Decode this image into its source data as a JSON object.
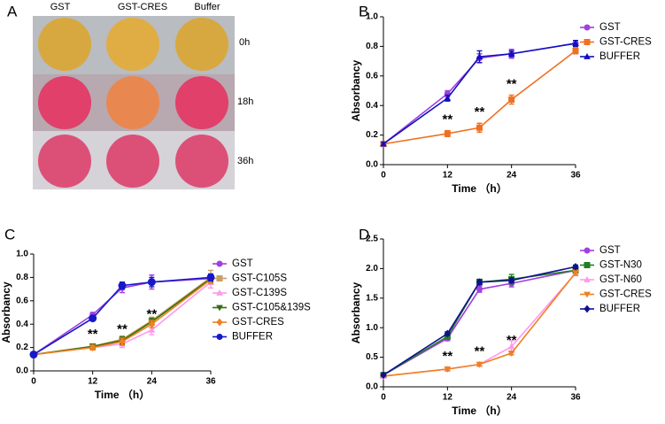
{
  "photo_panel": {
    "panel": "A",
    "columns": [
      "GST",
      "GST-CRES",
      "Buffer"
    ],
    "rows": [
      "0h",
      "18h",
      "36h"
    ]
  },
  "chart_data": [
    {
      "type": "line",
      "panel": "B",
      "xlabel": "Time （h）",
      "ylabel": "Absorbancy",
      "x": [
        0,
        12,
        18,
        24,
        36
      ],
      "xlim": [
        0,
        36
      ],
      "xticks": [
        0,
        12,
        24,
        36
      ],
      "ylim": [
        0,
        1
      ],
      "yticks": [
        {
          "value": 0,
          "label": "0.0"
        },
        0.2,
        0.4,
        0.6,
        0.8,
        {
          "value": 1,
          "label": "1.0"
        }
      ],
      "annotations": [
        {
          "text": "**",
          "x": 12
        },
        {
          "text": "**",
          "x": 18
        },
        {
          "text": "**",
          "x": 24
        }
      ],
      "series": [
        {
          "name": "GST",
          "color": "#a040e0",
          "marker": "circle",
          "values": [
            0.14,
            0.48,
            0.72,
            0.75,
            0.82
          ],
          "errors": [
            0.01,
            0.02,
            0.03,
            0.03,
            0.02
          ]
        },
        {
          "name": "GST-CRES",
          "color": "#f07020",
          "marker": "square",
          "values": [
            0.14,
            0.21,
            0.25,
            0.44,
            0.77
          ],
          "errors": [
            0.01,
            0.02,
            0.03,
            0.03,
            0.02
          ]
        },
        {
          "name": "BUFFER",
          "color": "#1010c0",
          "marker": "triangle",
          "values": [
            0.14,
            0.45,
            0.73,
            0.75,
            0.82
          ],
          "errors": [
            0.01,
            0.02,
            0.04,
            0.02,
            0.02
          ]
        }
      ]
    },
    {
      "type": "line",
      "panel": "C",
      "xlabel": "Time （h）",
      "ylabel": "Absorbancy",
      "x": [
        0,
        12,
        18,
        24,
        36
      ],
      "xlim": [
        0,
        36
      ],
      "xticks": [
        0,
        12,
        24,
        36
      ],
      "ylim": [
        0,
        1
      ],
      "yticks": [
        {
          "value": 0,
          "label": "0.0"
        },
        0.2,
        0.4,
        0.6,
        0.8,
        {
          "value": 1,
          "label": "1.0"
        }
      ],
      "annotations": [
        {
          "text": "**",
          "x": 12
        },
        {
          "text": "**",
          "x": 18
        },
        {
          "text": "**",
          "x": 24
        }
      ],
      "series": [
        {
          "name": "GST",
          "color": "#a040e0",
          "marker": "circle",
          "values": [
            0.14,
            0.48,
            0.71,
            0.76,
            0.79
          ],
          "errors": [
            0.01,
            0.02,
            0.04,
            0.06,
            0.03
          ]
        },
        {
          "name": "GST-C105S",
          "color": "#c8a060",
          "marker": "square",
          "values": [
            0.14,
            0.21,
            0.27,
            0.43,
            0.8
          ],
          "errors": [
            0.01,
            0.02,
            0.03,
            0.03,
            0.06
          ]
        },
        {
          "name": "GST-C139S",
          "color": "#ff99ee",
          "marker": "triangle",
          "values": [
            0.14,
            0.2,
            0.23,
            0.35,
            0.76
          ],
          "errors": [
            0.01,
            0.02,
            0.03,
            0.04,
            0.05
          ]
        },
        {
          "name": "GST-C105&139S",
          "color": "#2f7010",
          "marker": "triangle-down",
          "values": [
            0.14,
            0.21,
            0.26,
            0.42,
            0.79
          ],
          "errors": [
            0.01,
            0.02,
            0.03,
            0.03,
            0.03
          ]
        },
        {
          "name": "GST-CRES",
          "color": "#f08020",
          "marker": "diamond",
          "values": [
            0.14,
            0.2,
            0.25,
            0.4,
            0.78
          ],
          "errors": [
            0.01,
            0.02,
            0.03,
            0.03,
            0.03
          ]
        },
        {
          "name": "BUFFER",
          "color": "#1818c8",
          "marker": "circle",
          "values": [
            0.14,
            0.45,
            0.73,
            0.76,
            0.8
          ],
          "errors": [
            0.01,
            0.02,
            0.03,
            0.04,
            0.03
          ]
        }
      ]
    },
    {
      "type": "line",
      "panel": "D",
      "xlabel": "Time （h）",
      "ylabel": "Absorbancy",
      "x": [
        0,
        12,
        18,
        24,
        36
      ],
      "xlim": [
        0,
        36
      ],
      "xticks": [
        0,
        12,
        24,
        36
      ],
      "ylim": [
        0,
        2.5
      ],
      "yticks": [
        {
          "value": 0,
          "label": "0.0"
        },
        0.5,
        {
          "value": 1,
          "label": "1.0"
        },
        1.5,
        {
          "value": 2,
          "label": "2.0"
        },
        2.5
      ],
      "annotations": [
        {
          "text": "**",
          "x": 12
        },
        {
          "text": "**",
          "x": 18
        },
        {
          "text": "**",
          "x": 24
        }
      ],
      "series": [
        {
          "name": "GST",
          "color": "#a040e0",
          "marker": "circle",
          "values": [
            0.2,
            0.82,
            1.65,
            1.75,
            1.97
          ],
          "errors": [
            0.02,
            0.04,
            0.05,
            0.06,
            0.04
          ]
        },
        {
          "name": "GST-N30",
          "color": "#208020",
          "marker": "square",
          "values": [
            0.2,
            0.85,
            1.77,
            1.82,
            1.97
          ],
          "errors": [
            0.02,
            0.04,
            0.05,
            0.08,
            0.04
          ]
        },
        {
          "name": "GST-N60",
          "color": "#ff99ee",
          "marker": "triangle",
          "values": [
            0.18,
            0.3,
            0.38,
            0.68,
            1.92
          ],
          "errors": [
            0.02,
            0.03,
            0.03,
            0.1,
            0.04
          ]
        },
        {
          "name": "GST-CRES",
          "color": "#f08020",
          "marker": "triangle-down",
          "values": [
            0.18,
            0.3,
            0.38,
            0.57,
            1.93
          ],
          "errors": [
            0.02,
            0.03,
            0.03,
            0.03,
            0.04
          ]
        },
        {
          "name": "BUFFER",
          "color": "#101090",
          "marker": "diamond",
          "values": [
            0.2,
            0.9,
            1.77,
            1.8,
            2.03
          ],
          "errors": [
            0.02,
            0.03,
            0.04,
            0.04,
            0.03
          ]
        }
      ]
    }
  ]
}
